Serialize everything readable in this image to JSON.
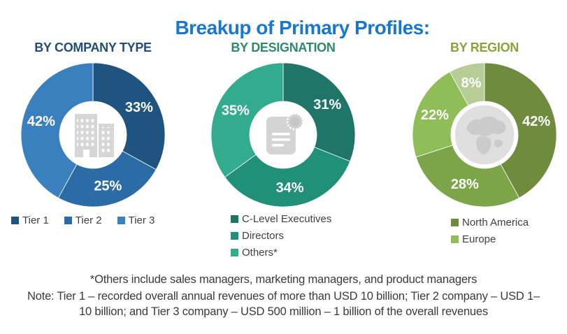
{
  "title": {
    "text": "Breakup of Primary Profiles:",
    "color": "#1878CF"
  },
  "chart_data": [
    {
      "type": "pie",
      "title": "BY COMPANY TYPE",
      "title_color": "#1F4E79",
      "center_icon": "buildings-icon",
      "donut_hole_ratio": 0.47,
      "labels": [
        "Tier 1",
        "Tier 2",
        "Tier 3"
      ],
      "values": [
        33,
        25,
        42
      ],
      "data_labels": [
        "33%",
        "25%",
        "42%"
      ],
      "colors": [
        "#1F5380",
        "#2C6CA6",
        "#3B80BE"
      ],
      "legend": {
        "layout": "horizontal",
        "entries": [
          {
            "label": "Tier 1",
            "color": "#1F5380"
          },
          {
            "label": "Tier 2",
            "color": "#2C6CA6"
          },
          {
            "label": "Tier 3",
            "color": "#3B80BE"
          }
        ]
      }
    },
    {
      "type": "pie",
      "title": "BY DESIGNATION",
      "title_color": "#2E8B67",
      "center_icon": "document-icon",
      "donut_hole_ratio": 0.47,
      "labels": [
        "C-Level Executives",
        "Directors",
        "Others*"
      ],
      "values": [
        31,
        34,
        35
      ],
      "data_labels": [
        "31%",
        "34%",
        "35%"
      ],
      "colors": [
        "#1F7568",
        "#219078",
        "#32AB8F"
      ],
      "legend": {
        "layout": "vertical",
        "entries": [
          {
            "label": "C-Level Executives",
            "color": "#1F7568"
          },
          {
            "label": "Directors",
            "color": "#219078"
          },
          {
            "label": "Others*",
            "color": "#32AB8F"
          }
        ]
      }
    },
    {
      "type": "pie",
      "title": "BY REGION",
      "title_color": "#8AA338",
      "center_icon": "globe-icon",
      "donut_hole_ratio": 0.47,
      "labels": [
        "North America",
        "",
        "Europe",
        ""
      ],
      "values": [
        42,
        28,
        22,
        8
      ],
      "data_labels": [
        "42%",
        "28%",
        "22%",
        "8%"
      ],
      "colors": [
        "#6F8C3E",
        "#7CA449",
        "#8FBE58",
        "#B7CD96"
      ],
      "legend": {
        "layout": "vertical",
        "entries": [
          {
            "label": "North America",
            "color": "#6F8C3E"
          },
          {
            "label": "Europe",
            "color": "#8FBE58"
          }
        ]
      }
    }
  ],
  "footnotes": {
    "others": "*Others include sales managers, marketing managers, and product managers",
    "note": "Note: Tier 1 – recorded overall annual revenues of more than USD 10 billion; Tier 2 company – USD 1–10 billion; and Tier 3 company – USD 500 million – 1 billion of the overall revenues"
  }
}
